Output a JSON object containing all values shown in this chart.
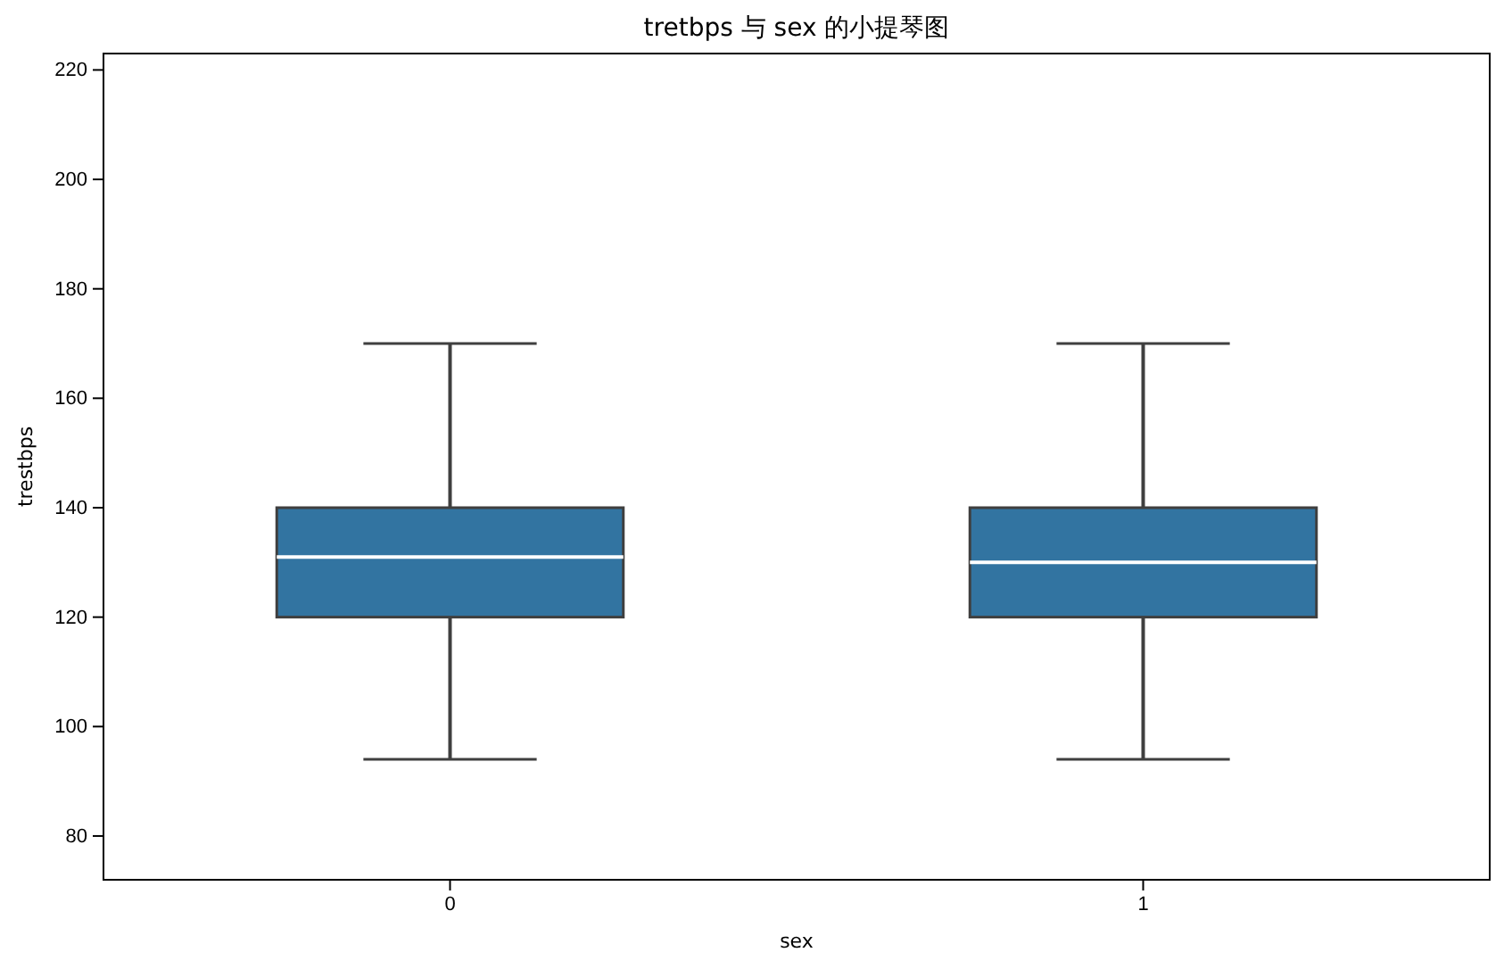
{
  "chart_data": {
    "type": "box",
    "title": "tretbps 与 sex 的小提琴图",
    "xlabel": "sex",
    "ylabel": "trestbps",
    "categories": [
      "0",
      "1"
    ],
    "color": "#3274a1",
    "boxes": [
      {
        "low": 94,
        "q1": 120,
        "median": 131,
        "q3": 140,
        "high": 170
      },
      {
        "low": 94,
        "q1": 120,
        "median": 130,
        "q3": 140,
        "high": 170
      }
    ],
    "ylim": [
      72,
      223
    ],
    "yticks": [
      80,
      100,
      120,
      140,
      160,
      180,
      200,
      220
    ],
    "grid": false
  }
}
